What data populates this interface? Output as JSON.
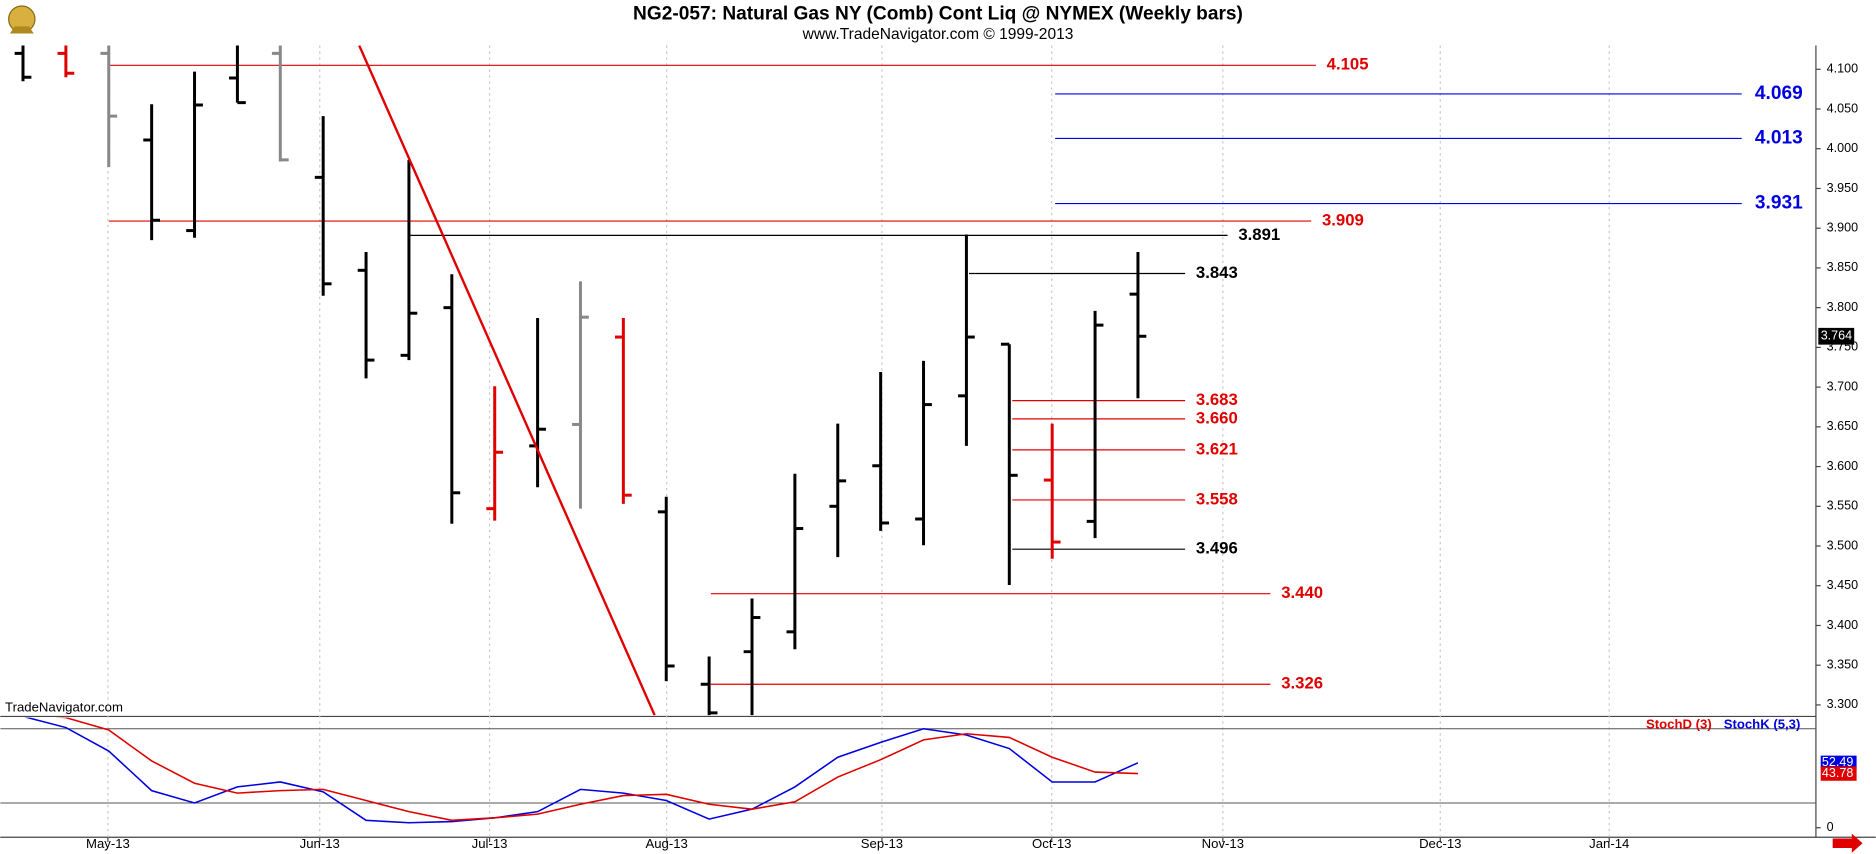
{
  "chart_data": [
    {
      "type": "ohlc",
      "title": "NG2-057:  Natural Gas NY (Comb) Cont Liq @ NYMEX  (Weekly bars)",
      "subtitle": "www.TradeNavigator.com © 1999-2013",
      "watermark": "TradeNavigator.com",
      "open": [
        4.12,
        4.12,
        4.12,
        4.011,
        3.897,
        4.089,
        4.12,
        3.964,
        3.847,
        3.74,
        3.8,
        3.547,
        3.626,
        3.653,
        3.763,
        3.543,
        3.326,
        3.367,
        3.392,
        3.55,
        3.601,
        3.534,
        3.689,
        3.754,
        3.583,
        3.531,
        3.817
      ],
      "high": [
        4.13,
        4.13,
        4.13,
        4.056,
        4.097,
        4.13,
        4.13,
        4.041,
        3.87,
        3.986,
        3.842,
        3.701,
        3.787,
        3.833,
        3.787,
        3.562,
        3.361,
        3.434,
        3.591,
        3.654,
        3.719,
        3.733,
        3.892,
        3.754,
        3.654,
        3.796,
        3.87
      ],
      "low": [
        4.085,
        4.09,
        3.977,
        3.885,
        3.888,
        4.058,
        3.984,
        3.815,
        3.711,
        3.734,
        3.528,
        3.532,
        3.574,
        3.547,
        3.553,
        3.33,
        3.287,
        3.287,
        3.37,
        3.486,
        3.519,
        3.501,
        3.626,
        3.451,
        3.484,
        3.51,
        3.686
      ],
      "close": [
        4.09,
        4.095,
        4.041,
        3.91,
        4.055,
        4.058,
        3.986,
        3.83,
        3.734,
        3.793,
        3.567,
        3.618,
        3.647,
        3.788,
        3.564,
        3.349,
        3.29,
        3.41,
        3.522,
        3.582,
        3.529,
        3.678,
        3.763,
        3.589,
        3.505,
        3.778,
        3.764
      ],
      "bar_colors": [
        "#000000",
        "#e00000",
        "#888888",
        "#000000",
        "#000000",
        "#000000",
        "#888888",
        "#000000",
        "#000000",
        "#000000",
        "#000000",
        "#e00000",
        "#000000",
        "#888888",
        "#e00000",
        "#000000",
        "#000000",
        "#000000",
        "#000000",
        "#000000",
        "#000000",
        "#000000",
        "#000000",
        "#000000",
        "#e00000",
        "#000000",
        "#000000"
      ],
      "last_price": 3.764,
      "xlim": [
        -0.53,
        41.81
      ],
      "ylim": [
        3.287,
        4.13
      ],
      "yticks": [
        {
          "value": 3.3,
          "label": "3.300"
        },
        {
          "value": 3.35,
          "label": "3.350"
        },
        {
          "value": 3.4,
          "label": "3.400"
        },
        {
          "value": 3.45,
          "label": "3.450"
        },
        {
          "value": 3.5,
          "label": "3.500"
        },
        {
          "value": 3.55,
          "label": "3.550"
        },
        {
          "value": 3.6,
          "label": "3.600"
        },
        {
          "value": 3.65,
          "label": "3.650"
        },
        {
          "value": 3.7,
          "label": "3.700"
        },
        {
          "value": 3.75,
          "label": "3.750"
        },
        {
          "value": 3.8,
          "label": "3.800"
        },
        {
          "value": 3.85,
          "label": "3.850"
        },
        {
          "value": 3.9,
          "label": "3.900"
        },
        {
          "value": 3.95,
          "label": "3.950"
        },
        {
          "value": 4.0,
          "label": "4.000"
        },
        {
          "value": 4.05,
          "label": "4.050"
        },
        {
          "value": 4.1,
          "label": "4.100"
        }
      ],
      "trendline": {
        "x": [
          7.84,
          14.73
        ],
        "y": [
          4.13,
          3.287
        ],
        "color": "#e00000"
      },
      "levels": [
        {
          "value": 4.105,
          "color": "#e00000",
          "start": 2,
          "end": 30.15
        },
        {
          "value": 3.909,
          "color": "#e00000",
          "start": 2,
          "end": 30.04
        },
        {
          "value": 3.891,
          "color": "#000000",
          "start": 9,
          "end": 28.09
        },
        {
          "value": 3.843,
          "color": "#000000",
          "start": 22.06,
          "end": 27.1
        },
        {
          "value": 3.683,
          "color": "#e00000",
          "start": 23.07,
          "end": 27.1
        },
        {
          "value": 3.66,
          "label": "3.660",
          "color": "#e00000",
          "start": 23.07,
          "end": 27.1
        },
        {
          "value": 3.621,
          "color": "#e00000",
          "start": 23.07,
          "end": 27.1
        },
        {
          "value": 3.558,
          "color": "#e00000",
          "start": 23.07,
          "end": 27.1
        },
        {
          "value": 3.496,
          "color": "#000000",
          "start": 23.07,
          "end": 27.1
        },
        {
          "value": 3.44,
          "label": "3.440",
          "color": "#e00000",
          "start": 16.04,
          "end": 29.09
        },
        {
          "value": 3.326,
          "color": "#e00000",
          "start": 16.04,
          "end": 29.09
        }
      ],
      "targets": [
        {
          "value": 4.069,
          "color": "#0000e0",
          "start": 24.07,
          "end": 40.08
        },
        {
          "value": 4.013,
          "color": "#0000e0",
          "start": 24.07,
          "end": 40.08
        },
        {
          "value": 3.931,
          "color": "#0000e0",
          "start": 24.07,
          "end": 40.08
        }
      ]
    },
    {
      "type": "line",
      "xlim": [
        -0.53,
        41.81
      ],
      "ylim": [
        -7.7,
        89
      ],
      "yticks": [
        0
      ],
      "hlines": [
        20,
        80
      ],
      "xticks": [
        {
          "value": 1.98,
          "label": "May-13"
        },
        {
          "value": 6.92,
          "label": "Jun-13"
        },
        {
          "value": 10.88,
          "label": "Jul-13"
        },
        {
          "value": 15.01,
          "label": "Aug-13"
        },
        {
          "value": 20.03,
          "label": "Sep-13"
        },
        {
          "value": 23.99,
          "label": "Oct-13"
        },
        {
          "value": 27.98,
          "label": "Nov-13"
        },
        {
          "value": 33.05,
          "label": "Dec-13"
        },
        {
          "value": 36.99,
          "label": "Jan-14"
        }
      ],
      "series": [
        {
          "name": "StochD (3)",
          "color": "#e00000",
          "values": [
            92,
            89,
            79,
            54,
            36,
            28,
            30,
            31,
            22,
            13,
            6,
            8,
            11,
            19,
            26,
            27,
            19,
            15,
            21,
            41,
            55,
            71,
            76,
            73,
            57,
            45,
            43.78
          ]
        },
        {
          "name": "StochK (5,3)",
          "color": "#0000e0",
          "values": [
            90,
            81,
            62,
            30,
            20,
            33,
            37,
            29,
            6,
            4,
            5,
            8,
            13,
            31,
            28,
            22,
            7,
            15,
            33,
            57,
            69,
            80,
            75,
            64,
            37,
            37,
            52.49
          ]
        }
      ]
    }
  ]
}
